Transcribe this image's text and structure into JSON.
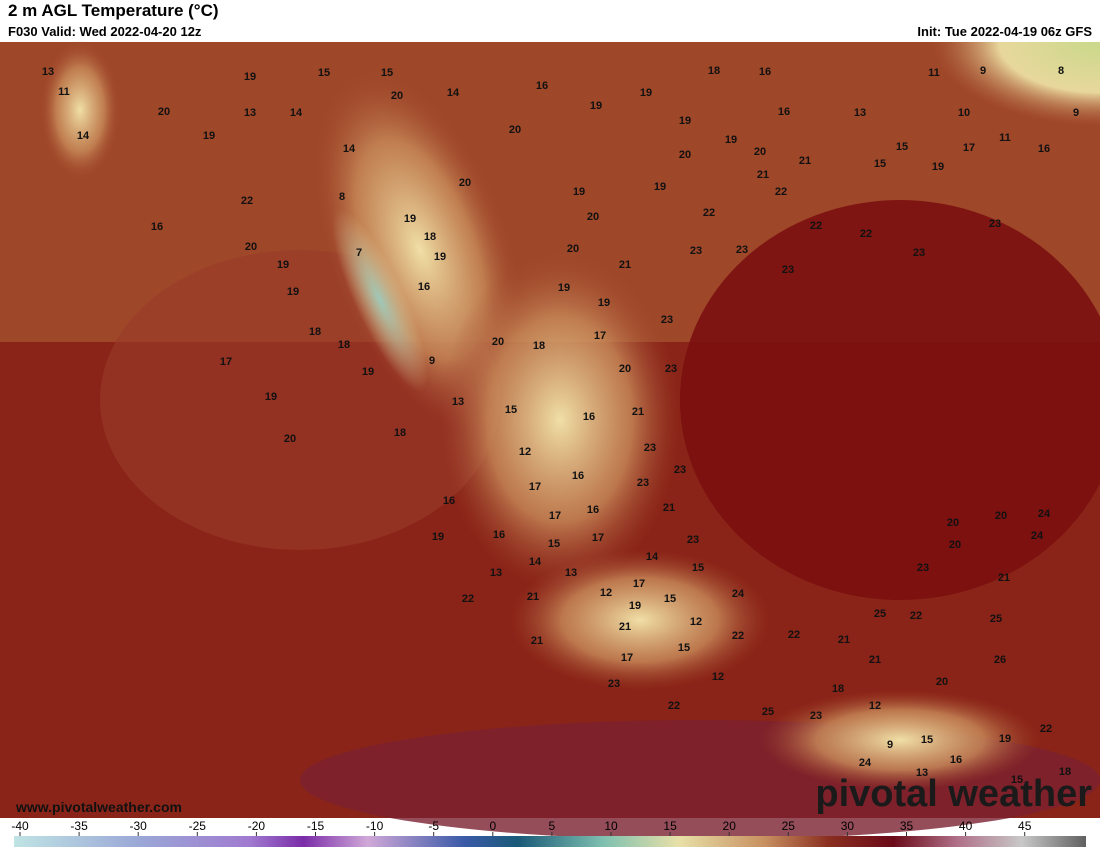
{
  "header": {
    "title": "2 m AGL Temperature (°C)",
    "valid": "F030 Valid: Wed 2022-04-20 12z",
    "init": "Init: Tue 2022-04-19 06z GFS"
  },
  "map_labels": [
    13,
    11,
    19,
    15,
    15,
    16,
    18,
    16,
    11,
    9,
    8,
    14,
    20,
    13,
    14,
    20,
    14,
    19,
    19,
    16,
    13,
    10,
    9,
    19,
    20,
    19,
    19,
    11,
    15,
    14,
    20,
    20,
    21,
    17,
    16,
    15,
    19,
    20,
    21,
    19,
    19,
    22,
    22,
    8,
    19,
    20,
    22,
    22,
    22,
    23,
    16,
    18,
    20,
    19,
    7,
    20,
    23,
    23,
    23,
    19,
    21,
    23,
    19,
    16,
    19,
    19,
    18,
    18,
    20,
    18,
    17,
    23,
    17,
    9,
    19,
    20,
    23,
    19,
    13,
    15,
    16,
    21,
    20,
    18,
    23,
    12,
    16,
    23,
    17,
    23,
    16,
    17,
    16,
    21,
    20,
    20,
    24,
    19,
    16,
    15,
    17,
    23,
    20,
    24,
    14,
    14,
    15,
    23,
    13,
    13,
    17,
    21,
    22,
    21,
    12,
    19,
    15,
    24,
    25,
    22,
    25,
    21,
    12,
    21,
    22,
    22,
    21,
    15,
    17,
    21,
    26,
    12,
    20,
    23,
    18,
    22,
    12,
    25,
    23,
    22,
    9,
    15,
    19,
    24,
    16,
    13,
    18,
    15
  ],
  "colorbar_ticks": [
    -40,
    -35,
    -30,
    -25,
    -20,
    -15,
    -10,
    -5,
    0,
    5,
    10,
    15,
    20,
    25,
    30,
    35,
    40,
    45
  ],
  "footer": {
    "url": "www.pivotalweather.com",
    "logo": "pivotal weather"
  }
}
